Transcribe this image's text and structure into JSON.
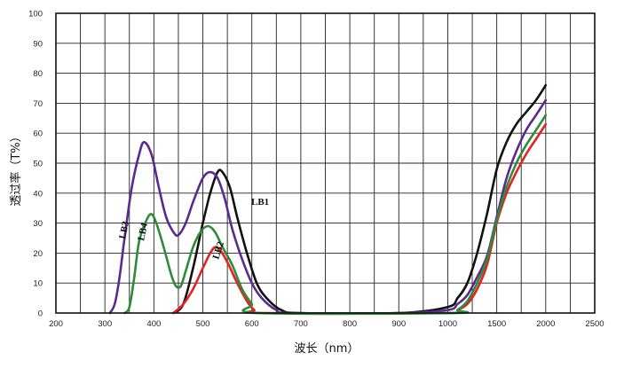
{
  "chart_data": {
    "type": "line",
    "title": "",
    "xlabel": "波长（nm）",
    "ylabel": "透过率（T%）",
    "x_ticks": [
      200,
      300,
      400,
      500,
      600,
      700,
      800,
      900,
      1000,
      1500,
      2000,
      2500
    ],
    "y_ticks": [
      0,
      10,
      20,
      30,
      40,
      50,
      60,
      70,
      80,
      90,
      100
    ],
    "ylim": [
      0,
      100
    ],
    "grid": true,
    "series": [
      {
        "name": "LB1",
        "color": "#111111",
        "points": [
          [
            440,
            0
          ],
          [
            460,
            3
          ],
          [
            480,
            15
          ],
          [
            500,
            30
          ],
          [
            515,
            40
          ],
          [
            530,
            47
          ],
          [
            540,
            47
          ],
          [
            555,
            42
          ],
          [
            570,
            32
          ],
          [
            590,
            20
          ],
          [
            610,
            10
          ],
          [
            630,
            5
          ],
          [
            660,
            1
          ],
          [
            700,
            0
          ],
          [
            900,
            0
          ],
          [
            1000,
            2
          ],
          [
            1100,
            5
          ],
          [
            1200,
            10
          ],
          [
            1300,
            20
          ],
          [
            1400,
            33
          ],
          [
            1500,
            48
          ],
          [
            1600,
            57
          ],
          [
            1700,
            63
          ],
          [
            1800,
            67
          ],
          [
            1900,
            71
          ],
          [
            2000,
            76
          ]
        ]
      },
      {
        "name": "LB2",
        "color": "#e52222",
        "points": [
          [
            440,
            0
          ],
          [
            460,
            3
          ],
          [
            480,
            8
          ],
          [
            500,
            15
          ],
          [
            515,
            20
          ],
          [
            525,
            22
          ],
          [
            535,
            21
          ],
          [
            550,
            17
          ],
          [
            570,
            10
          ],
          [
            590,
            4
          ],
          [
            605,
            1
          ],
          [
            620,
            0
          ],
          [
            1000,
            0
          ],
          [
            1100,
            1
          ],
          [
            1200,
            3
          ],
          [
            1300,
            8
          ],
          [
            1400,
            16
          ],
          [
            1500,
            30
          ],
          [
            1600,
            40
          ],
          [
            1700,
            47
          ],
          [
            1800,
            53
          ],
          [
            1900,
            58
          ],
          [
            2000,
            63
          ]
        ]
      },
      {
        "name": "LB3",
        "color": "#5a2a8e",
        "points": [
          [
            310,
            0
          ],
          [
            320,
            3
          ],
          [
            330,
            12
          ],
          [
            340,
            25
          ],
          [
            355,
            42
          ],
          [
            370,
            53
          ],
          [
            380,
            57
          ],
          [
            395,
            53
          ],
          [
            410,
            42
          ],
          [
            425,
            32
          ],
          [
            440,
            27
          ],
          [
            450,
            26
          ],
          [
            465,
            30
          ],
          [
            480,
            37
          ],
          [
            500,
            45
          ],
          [
            515,
            47
          ],
          [
            530,
            45
          ],
          [
            545,
            38
          ],
          [
            560,
            28
          ],
          [
            580,
            18
          ],
          [
            600,
            10
          ],
          [
            620,
            5
          ],
          [
            650,
            1
          ],
          [
            680,
            0
          ],
          [
            900,
            0
          ],
          [
            1000,
            1
          ],
          [
            1100,
            3
          ],
          [
            1200,
            6
          ],
          [
            1300,
            12
          ],
          [
            1400,
            19
          ],
          [
            1500,
            32
          ],
          [
            1600,
            45
          ],
          [
            1700,
            54
          ],
          [
            1800,
            61
          ],
          [
            1900,
            66
          ],
          [
            2000,
            71
          ]
        ]
      },
      {
        "name": "LB4",
        "color": "#2e8b3a",
        "points": [
          [
            340,
            0
          ],
          [
            350,
            2
          ],
          [
            360,
            12
          ],
          [
            370,
            24
          ],
          [
            385,
            31
          ],
          [
            395,
            33
          ],
          [
            405,
            30
          ],
          [
            420,
            22
          ],
          [
            435,
            13
          ],
          [
            445,
            9
          ],
          [
            455,
            9
          ],
          [
            465,
            14
          ],
          [
            480,
            22
          ],
          [
            495,
            27
          ],
          [
            510,
            29
          ],
          [
            525,
            27
          ],
          [
            540,
            22
          ],
          [
            560,
            16
          ],
          [
            580,
            8
          ],
          [
            600,
            3
          ],
          [
            615,
            0
          ],
          [
            1050,
            0
          ],
          [
            1100,
            1
          ],
          [
            1200,
            4
          ],
          [
            1300,
            10
          ],
          [
            1400,
            18
          ],
          [
            1500,
            31
          ],
          [
            1600,
            42
          ],
          [
            1700,
            50
          ],
          [
            1800,
            56
          ],
          [
            1900,
            61
          ],
          [
            2000,
            66
          ]
        ]
      }
    ],
    "annotations": [
      "LB1",
      "LB2",
      "LB3",
      "LB4"
    ]
  }
}
